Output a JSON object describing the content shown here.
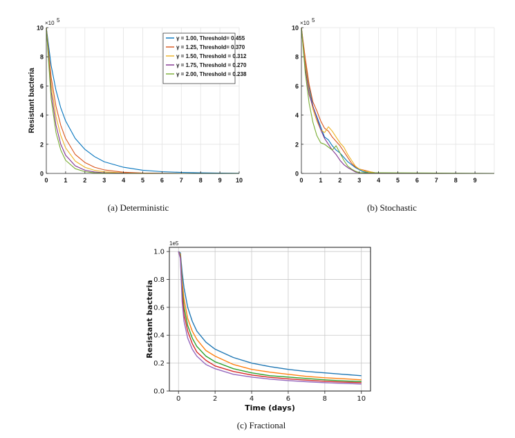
{
  "chart_data": [
    {
      "id": "a",
      "type": "line",
      "caption": "(a) Deterministic",
      "xlabel": "",
      "ylabel": "Resistant bacteria",
      "scale_label": "×10",
      "scale_exp": "5",
      "xlim": [
        0,
        10
      ],
      "ylim": [
        0,
        10
      ],
      "xticks": [
        0,
        1,
        2,
        3,
        4,
        5,
        6,
        7,
        8,
        9,
        10
      ],
      "yticks": [
        0,
        2,
        4,
        6,
        8,
        10
      ],
      "grid": true,
      "legend_position": "top-right",
      "series": [
        {
          "name": "γ = 1.00, Threshold= 0.455",
          "color": "#0072bd",
          "x": [
            0,
            0.25,
            0.5,
            0.75,
            1,
            1.5,
            2,
            2.5,
            3,
            4,
            5,
            6,
            7,
            8,
            9,
            10
          ],
          "y": [
            10,
            7.4,
            5.7,
            4.5,
            3.6,
            2.4,
            1.65,
            1.15,
            0.8,
            0.42,
            0.22,
            0.12,
            0.07,
            0.04,
            0.02,
            0.01
          ]
        },
        {
          "name": "γ = 1.25, Threshold= 0.370",
          "color": "#d95319",
          "x": [
            0,
            0.25,
            0.5,
            0.75,
            1,
            1.5,
            2,
            2.5,
            3,
            4,
            5,
            6,
            7,
            8,
            9,
            10
          ],
          "y": [
            10,
            6.6,
            4.6,
            3.3,
            2.4,
            1.3,
            0.75,
            0.42,
            0.24,
            0.08,
            0.03,
            0.01,
            0,
            0,
            0,
            0
          ]
        },
        {
          "name": "γ = 1.50, Threshold = 0.312",
          "color": "#edb120",
          "x": [
            0,
            0.25,
            0.5,
            0.75,
            1,
            1.5,
            2,
            2.5,
            3,
            4,
            5,
            6,
            7,
            8,
            9,
            10
          ],
          "y": [
            10,
            6.1,
            3.9,
            2.6,
            1.75,
            0.85,
            0.42,
            0.21,
            0.11,
            0.03,
            0.01,
            0,
            0,
            0,
            0,
            0
          ]
        },
        {
          "name": "γ = 1.75, Threshold = 0.270",
          "color": "#7e2f8e",
          "x": [
            0,
            0.25,
            0.5,
            0.75,
            1,
            1.5,
            2,
            2.5,
            3,
            4,
            5,
            6,
            7,
            8,
            9,
            10
          ],
          "y": [
            10,
            5.6,
            3.3,
            2.0,
            1.25,
            0.52,
            0.22,
            0.1,
            0.04,
            0.01,
            0,
            0,
            0,
            0,
            0,
            0
          ]
        },
        {
          "name": "γ = 2.00, Threshold = 0.238",
          "color": "#77ac30",
          "x": [
            0,
            0.25,
            0.5,
            0.75,
            1,
            1.5,
            2,
            2.5,
            3,
            4,
            5,
            6,
            7,
            8,
            9,
            10
          ],
          "y": [
            10,
            5.1,
            2.8,
            1.6,
            0.9,
            0.32,
            0.12,
            0.04,
            0.02,
            0,
            0,
            0,
            0,
            0,
            0,
            0
          ]
        }
      ]
    },
    {
      "id": "b",
      "type": "line",
      "caption": "(b) Stochastic",
      "xlabel": "",
      "ylabel": "",
      "scale_label": "×10",
      "scale_exp": "5",
      "xlim": [
        0,
        10
      ],
      "ylim": [
        0,
        10
      ],
      "xticks": [
        0,
        1,
        2,
        3,
        4,
        5,
        6,
        7,
        8,
        9
      ],
      "yticks": [
        0,
        2,
        4,
        6,
        8,
        10
      ],
      "grid": true,
      "series": [
        {
          "color": "#0072bd",
          "x": [
            0,
            0.2,
            0.4,
            0.6,
            0.8,
            1.0,
            1.2,
            1.4,
            1.6,
            1.8,
            2.0,
            2.2,
            2.4,
            2.6,
            2.8,
            3.0,
            3.2,
            3.5,
            4,
            10
          ],
          "y": [
            10,
            7.6,
            5.9,
            4.6,
            3.9,
            3.2,
            2.5,
            2.3,
            1.9,
            1.6,
            1.4,
            1.1,
            0.8,
            0.6,
            0.4,
            0.25,
            0.12,
            0.05,
            0,
            0
          ]
        },
        {
          "color": "#d95319",
          "x": [
            0,
            0.2,
            0.4,
            0.6,
            0.8,
            1.0,
            1.2,
            1.4,
            1.6,
            1.8,
            2.0,
            2.2,
            2.4,
            2.6,
            2.8,
            3.0,
            3.3,
            3.6,
            4,
            10
          ],
          "y": [
            10,
            7.9,
            6.1,
            4.9,
            4.3,
            3.6,
            3.1,
            2.9,
            2.5,
            2.2,
            1.9,
            1.5,
            1.1,
            0.7,
            0.45,
            0.3,
            0.2,
            0.1,
            0,
            0
          ]
        },
        {
          "color": "#edb120",
          "x": [
            0,
            0.2,
            0.4,
            0.6,
            0.8,
            1.0,
            1.2,
            1.4,
            1.6,
            1.8,
            2.0,
            2.2,
            2.4,
            2.6,
            2.8,
            3.0,
            3.3,
            3.6,
            4,
            10
          ],
          "y": [
            10,
            7.5,
            5.6,
            4.4,
            3.6,
            3.0,
            2.8,
            3.2,
            2.9,
            2.5,
            2.1,
            1.8,
            1.3,
            0.9,
            0.5,
            0.3,
            0.15,
            0.1,
            0,
            0
          ]
        },
        {
          "color": "#7e2f8e",
          "x": [
            0,
            0.2,
            0.4,
            0.6,
            0.8,
            1.0,
            1.2,
            1.4,
            1.6,
            1.8,
            2.0,
            2.2,
            2.4,
            2.6,
            2.8,
            3.0,
            3.3,
            10
          ],
          "y": [
            10,
            7.2,
            5.4,
            4.6,
            3.8,
            3.0,
            2.4,
            2.0,
            1.6,
            1.3,
            0.9,
            0.6,
            0.4,
            0.25,
            0.1,
            0.05,
            0,
            0
          ]
        },
        {
          "color": "#77ac30",
          "x": [
            0,
            0.2,
            0.4,
            0.6,
            0.8,
            1.0,
            1.2,
            1.4,
            1.6,
            1.8,
            2.0,
            2.2,
            2.4,
            2.6,
            2.8,
            3.0,
            10
          ],
          "y": [
            10,
            6.9,
            4.8,
            3.5,
            2.6,
            2.1,
            2.0,
            1.8,
            1.6,
            1.9,
            1.4,
            0.9,
            0.5,
            0.3,
            0.15,
            0.05,
            0
          ]
        }
      ]
    },
    {
      "id": "c",
      "type": "line",
      "caption": "(c) Fractional",
      "xlabel": "Time (days)",
      "ylabel": "Resistant bacteria",
      "scale_label": "1e5",
      "xlim": [
        -0.5,
        10.5
      ],
      "ylim": [
        0,
        1.03
      ],
      "xticks": [
        0,
        2,
        4,
        6,
        8,
        10
      ],
      "yticks": [
        0.0,
        0.2,
        0.4,
        0.6,
        0.8,
        1.0
      ],
      "ytick_labels": [
        "0.0",
        "0.2",
        "0.4",
        "0.6",
        "0.8",
        "1.0"
      ],
      "grid": true,
      "series": [
        {
          "color": "#1f77b4",
          "x": [
            0,
            0.1,
            0.2,
            0.3,
            0.5,
            0.75,
            1,
            1.5,
            2,
            3,
            4,
            5,
            6,
            7,
            8,
            9,
            10
          ],
          "y": [
            1.0,
            0.99,
            0.85,
            0.74,
            0.6,
            0.5,
            0.43,
            0.35,
            0.3,
            0.24,
            0.2,
            0.175,
            0.155,
            0.14,
            0.13,
            0.12,
            0.11
          ]
        },
        {
          "color": "#ff7f0e",
          "x": [
            0,
            0.1,
            0.2,
            0.3,
            0.5,
            0.75,
            1,
            1.5,
            2,
            3,
            4,
            5,
            6,
            7,
            8,
            9,
            10
          ],
          "y": [
            1.0,
            0.98,
            0.78,
            0.66,
            0.52,
            0.43,
            0.37,
            0.29,
            0.25,
            0.19,
            0.155,
            0.135,
            0.12,
            0.105,
            0.095,
            0.088,
            0.08
          ]
        },
        {
          "color": "#2ca02c",
          "x": [
            0,
            0.1,
            0.2,
            0.3,
            0.5,
            0.75,
            1,
            1.5,
            2,
            3,
            4,
            5,
            6,
            7,
            8,
            9,
            10
          ],
          "y": [
            1.0,
            0.97,
            0.73,
            0.6,
            0.47,
            0.38,
            0.32,
            0.25,
            0.21,
            0.16,
            0.13,
            0.11,
            0.1,
            0.09,
            0.08,
            0.073,
            0.068
          ]
        },
        {
          "color": "#d62728",
          "x": [
            0,
            0.1,
            0.2,
            0.3,
            0.5,
            0.75,
            1,
            1.5,
            2,
            3,
            4,
            5,
            6,
            7,
            8,
            9,
            10
          ],
          "y": [
            1.0,
            0.96,
            0.69,
            0.55,
            0.43,
            0.34,
            0.28,
            0.22,
            0.18,
            0.14,
            0.115,
            0.098,
            0.087,
            0.078,
            0.07,
            0.064,
            0.06
          ]
        },
        {
          "color": "#9467bd",
          "x": [
            0,
            0.1,
            0.2,
            0.3,
            0.5,
            0.75,
            1,
            1.5,
            2,
            3,
            4,
            5,
            6,
            7,
            8,
            9,
            10
          ],
          "y": [
            1.0,
            0.95,
            0.64,
            0.5,
            0.38,
            0.3,
            0.25,
            0.19,
            0.16,
            0.12,
            0.1,
            0.085,
            0.075,
            0.067,
            0.06,
            0.055,
            0.05
          ]
        }
      ]
    }
  ]
}
